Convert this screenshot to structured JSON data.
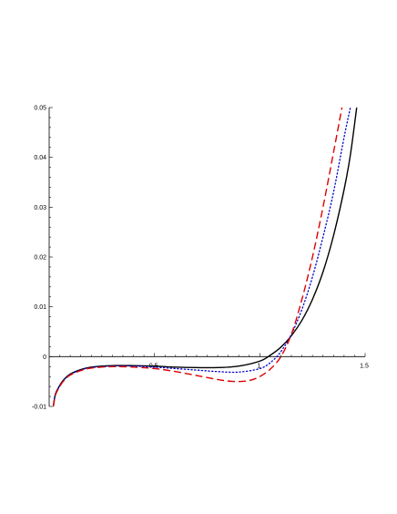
{
  "chart_data": {
    "type": "line",
    "title": "",
    "xlabel": "",
    "ylabel": "",
    "xlim": [
      0,
      1.5
    ],
    "ylim": [
      -0.01,
      0.05
    ],
    "grid": false,
    "x_ticks": [
      {
        "value": 0.5,
        "label": "0.5"
      },
      {
        "value": 1.0,
        "label": "1"
      },
      {
        "value": 1.5,
        "label": "1.5"
      }
    ],
    "y_ticks": [
      {
        "value": -0.01,
        "label": "-0.01"
      },
      {
        "value": 0,
        "label": "0"
      },
      {
        "value": 0.01,
        "label": "0.01"
      },
      {
        "value": 0.02,
        "label": "0.02"
      },
      {
        "value": 0.03,
        "label": "0.03"
      },
      {
        "value": 0.04,
        "label": "0.04"
      },
      {
        "value": 0.05,
        "label": "0.05"
      }
    ],
    "series": [
      {
        "color": "#000000",
        "style": "solid",
        "x": [
          0.02,
          0.03,
          0.05,
          0.07,
          0.1,
          0.15,
          0.2,
          0.3,
          0.4,
          0.5,
          0.6,
          0.7,
          0.8,
          0.9,
          1.0,
          1.05,
          1.1,
          1.15,
          1.2,
          1.25,
          1.3,
          1.35,
          1.4,
          1.43,
          1.46
        ],
        "y": [
          -0.0098,
          -0.0075,
          -0.0058,
          -0.0046,
          -0.0035,
          -0.0026,
          -0.0021,
          -0.0018,
          -0.0018,
          -0.0019,
          -0.0021,
          -0.0022,
          -0.0022,
          -0.0019,
          -0.0009,
          0.0003,
          0.0019,
          0.0042,
          0.0073,
          0.0115,
          0.017,
          0.0243,
          0.0335,
          0.0405,
          0.05
        ]
      },
      {
        "color": "#0000cc",
        "style": "dotted",
        "x": [
          0.02,
          0.03,
          0.05,
          0.07,
          0.1,
          0.15,
          0.2,
          0.3,
          0.4,
          0.5,
          0.6,
          0.7,
          0.8,
          0.9,
          1.0,
          1.05,
          1.1,
          1.15,
          1.2,
          1.25,
          1.3,
          1.35,
          1.4,
          1.43
        ],
        "y": [
          -0.0099,
          -0.0076,
          -0.0059,
          -0.0047,
          -0.0036,
          -0.0027,
          -0.0022,
          -0.0019,
          -0.0019,
          -0.0021,
          -0.0024,
          -0.0027,
          -0.003,
          -0.0031,
          -0.0024,
          -0.0012,
          0.001,
          0.0045,
          0.0095,
          0.016,
          0.024,
          0.033,
          0.044,
          0.05
        ]
      },
      {
        "color": "#dd0000",
        "style": "dashed",
        "x": [
          0.02,
          0.03,
          0.05,
          0.07,
          0.1,
          0.15,
          0.2,
          0.3,
          0.4,
          0.5,
          0.6,
          0.7,
          0.8,
          0.85,
          0.9,
          0.95,
          1.0,
          1.05,
          1.1,
          1.15,
          1.2,
          1.25,
          1.3,
          1.35,
          1.39
        ],
        "y": [
          -0.01,
          -0.0077,
          -0.006,
          -0.0048,
          -0.0037,
          -0.0028,
          -0.0023,
          -0.002,
          -0.0021,
          -0.0024,
          -0.003,
          -0.0038,
          -0.0046,
          -0.0049,
          -0.005,
          -0.0048,
          -0.004,
          -0.0025,
          0.0,
          0.0045,
          0.0115,
          0.02,
          0.03,
          0.041,
          0.05
        ]
      }
    ]
  }
}
